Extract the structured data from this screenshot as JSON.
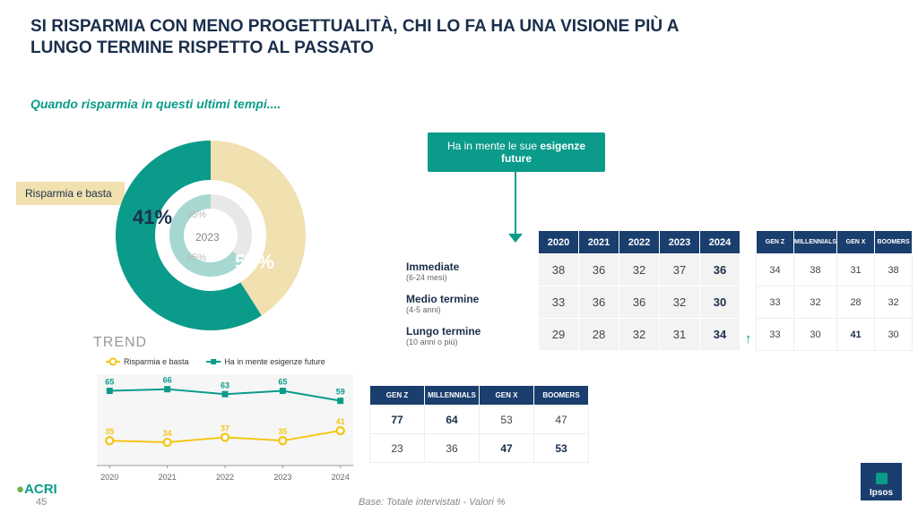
{
  "title_line1": "SI RISPARMIA CON MENO PROGETTUALITÀ, CHI LO FA HA UNA VISIONE PIÙ A",
  "title_line2": "LUNGO TERMINE RISPETTO AL PASSATO",
  "subtitle": "Quando risparmia in questi ultimi tempi....",
  "donut": {
    "type": "donut",
    "slices": [
      {
        "label": "Risparmia e basta",
        "value": 41,
        "color": "#f1e0b0",
        "text_color": "#1a2e4a"
      },
      {
        "label": "Ha in mente le sue esigenze future",
        "value": 59,
        "color": "#0b9b8a",
        "text_color": "#ffffff"
      }
    ],
    "inner_slices": [
      {
        "value": 35,
        "color": "#e8e8e8"
      },
      {
        "value": 65,
        "color": "#a6d8d1"
      }
    ],
    "center_label": "2023",
    "inner_pct_a": "35%",
    "inner_pct_b": "65%",
    "pct_a": "41%",
    "pct_b": "59%",
    "left_label": "Risparmia e basta"
  },
  "callout_html": "Ha in mente le sue <b>esigenze future</b>",
  "row_labels": [
    {
      "main": "Immediate",
      "sub": "(6-24 mesi)"
    },
    {
      "main": "Medio termine",
      "sub": "(4-5 anni)"
    },
    {
      "main": "Lungo termine",
      "sub": "(10 anni o più)"
    }
  ],
  "year_table": {
    "headers": [
      "2020",
      "2021",
      "2022",
      "2023",
      "2024"
    ],
    "rows": [
      [
        38,
        36,
        32,
        37,
        36
      ],
      [
        33,
        36,
        36,
        32,
        30
      ],
      [
        29,
        28,
        32,
        31,
        34
      ]
    ],
    "emph_col": 4,
    "header_bg": "#1a3e6e",
    "cell_bg": "#f3f3f3"
  },
  "up_arrow": "↑",
  "gen_table1": {
    "headers": [
      "GEN Z",
      "MILLENNIALS",
      "GEN X",
      "BOOMERS"
    ],
    "rows": [
      [
        34,
        38,
        31,
        38
      ],
      [
        33,
        32,
        28,
        32
      ],
      [
        33,
        30,
        41,
        30
      ]
    ],
    "bold_cells": [
      [
        2,
        2
      ]
    ]
  },
  "gen_table2": {
    "headers": [
      "GEN Z",
      "MILLENNIALS",
      "GEN X",
      "BOOMERS"
    ],
    "rows": [
      [
        77,
        64,
        53,
        47
      ],
      [
        23,
        36,
        47,
        53
      ]
    ],
    "bold_cells": [
      [
        0,
        0
      ],
      [
        0,
        1
      ],
      [
        1,
        2
      ],
      [
        1,
        3
      ]
    ]
  },
  "trend": {
    "type": "line",
    "title": "TREND",
    "x_labels": [
      "2020",
      "2021",
      "2022",
      "2023",
      "2024"
    ],
    "series": [
      {
        "name": "Risparmia e basta",
        "color": "#f5c518",
        "marker": "circle",
        "values": [
          35,
          34,
          37,
          35,
          41
        ]
      },
      {
        "name": "Ha in mente esigenze future",
        "color": "#0b9b8a",
        "marker": "square",
        "values": [
          65,
          66,
          63,
          65,
          59
        ]
      }
    ],
    "ylim": [
      20,
      75
    ],
    "plot_bg": "#f6f6f6",
    "legend_fontsize": 9,
    "label_fontsize": 9
  },
  "footer_base": "Base: Totale intervistati - Valori %",
  "page_num": "45",
  "logo_left_a": "●",
  "logo_left_b": "ACRI",
  "logo_right": "Ipsos"
}
